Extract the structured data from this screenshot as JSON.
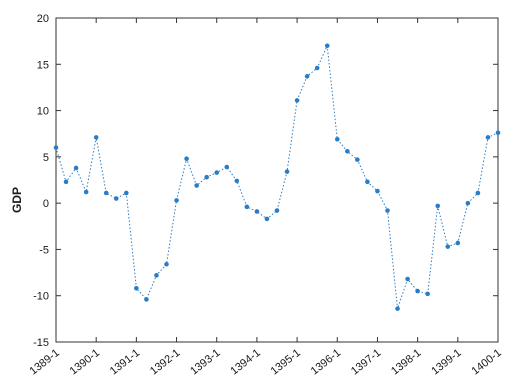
{
  "chart_data": {
    "type": "line",
    "title": "",
    "xlabel": "",
    "ylabel": "GDP",
    "ylim": [
      -15,
      20
    ],
    "yticks": [
      -15,
      -10,
      -5,
      0,
      5,
      10,
      15,
      20
    ],
    "xticks": [
      "1389-1",
      "1390-1",
      "1391-1",
      "1392-1",
      "1393-1",
      "1394-1",
      "1395-1",
      "1396-1",
      "1397-1",
      "1398-1",
      "1399-1",
      "1400-1"
    ],
    "grid": false,
    "line_style": "dotted",
    "marker": "dot",
    "colors": {
      "series": "#2a7cc7",
      "axis": "#333333",
      "background": "#ffffff"
    },
    "series": [
      {
        "x": [
          "1389-1",
          "1389-2",
          "1389-3",
          "1389-4",
          "1390-1",
          "1390-2",
          "1390-3",
          "1390-4",
          "1391-1",
          "1391-2",
          "1391-3",
          "1391-4",
          "1392-1",
          "1392-2",
          "1392-3",
          "1392-4",
          "1393-1",
          "1393-2",
          "1393-3",
          "1393-4",
          "1394-1",
          "1394-2",
          "1394-3",
          "1394-4",
          "1395-1",
          "1395-2",
          "1395-3",
          "1395-4",
          "1396-1",
          "1396-2",
          "1396-3",
          "1396-4",
          "1397-1",
          "1397-2",
          "1397-3",
          "1397-4",
          "1398-1",
          "1398-2",
          "1398-3",
          "1398-4",
          "1399-1",
          "1399-2",
          "1399-3",
          "1399-4",
          "1400-1"
        ],
        "values": [
          6.0,
          2.3,
          3.8,
          1.2,
          7.1,
          1.1,
          0.5,
          1.1,
          -9.2,
          -10.4,
          -7.8,
          -6.6,
          0.3,
          4.8,
          1.9,
          2.8,
          3.3,
          3.9,
          2.4,
          -0.4,
          -0.9,
          -1.7,
          -0.8,
          3.4,
          11.1,
          13.7,
          14.6,
          17.0,
          6.9,
          5.6,
          4.7,
          2.3,
          1.3,
          -0.8,
          -11.4,
          -8.2,
          -9.5,
          -9.8,
          -0.3,
          -4.7,
          -4.3,
          0.0,
          1.1,
          7.1,
          7.6
        ]
      }
    ]
  }
}
